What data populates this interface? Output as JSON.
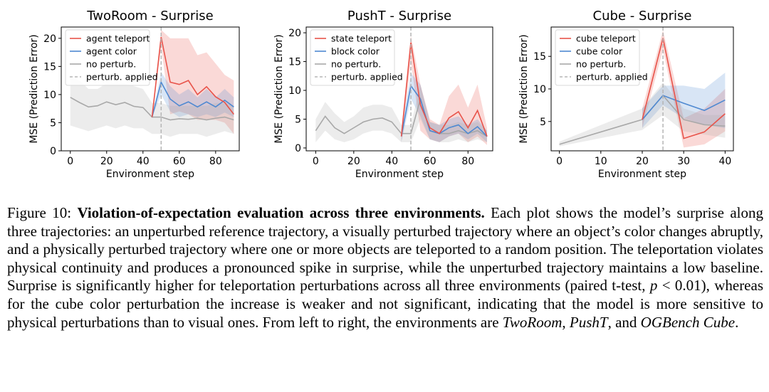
{
  "chart_data": [
    {
      "type": "line",
      "title": "TwoRoom - Surprise",
      "xlabel": "Environment step",
      "ylabel": "MSE (Prediction Error)",
      "xlim": [
        -5,
        93
      ],
      "ylim": [
        0,
        22
      ],
      "xticks": [
        0,
        20,
        40,
        60,
        80
      ],
      "yticks": [
        0,
        5,
        10,
        15,
        20
      ],
      "perturbation_x": 50,
      "legend_position": "top-left",
      "series": [
        {
          "name": "agent teleport",
          "color": "#e8534a",
          "x": [
            45,
            50,
            55,
            60,
            65,
            70,
            75,
            80,
            85,
            90
          ],
          "y": [
            6,
            20.2,
            12.2,
            11.8,
            12.5,
            10,
            11.4,
            9.6,
            8.6,
            6.5
          ],
          "lower": [
            6,
            18.5,
            6.5,
            7,
            6.5,
            5.5,
            5.5,
            5.5,
            5,
            3
          ],
          "upper": [
            6,
            21.5,
            20,
            20,
            20,
            17,
            17.5,
            15.5,
            13.5,
            12.5
          ]
        },
        {
          "name": "agent color",
          "color": "#4f89d1",
          "x": [
            45,
            50,
            55,
            60,
            65,
            70,
            75,
            80,
            85,
            90
          ],
          "y": [
            6,
            12.2,
            9.2,
            8,
            8.7,
            7.8,
            8.7,
            7.8,
            9,
            7.8
          ],
          "lower": [
            6,
            10,
            7,
            6,
            6.5,
            6,
            6.5,
            6,
            6.8,
            6
          ],
          "upper": [
            6,
            14,
            11.5,
            10,
            11,
            9.5,
            11,
            9.5,
            11,
            9.5
          ]
        },
        {
          "name": "no perturb.",
          "color": "#a8a8a8",
          "x": [
            0,
            5,
            10,
            15,
            20,
            25,
            30,
            35,
            40,
            45,
            50,
            55,
            60,
            65,
            70,
            75,
            80,
            85,
            90
          ],
          "y": [
            9.5,
            8.6,
            7.8,
            8,
            8.7,
            8.2,
            8.6,
            7.9,
            7.7,
            6,
            6,
            5.5,
            5.7,
            5.6,
            5.8,
            5.5,
            5.8,
            6,
            5.5
          ],
          "lower": [
            4.5,
            4,
            3.5,
            4,
            4.5,
            4,
            4.5,
            4,
            4,
            3,
            3,
            2.5,
            3,
            3,
            3,
            2.5,
            3,
            3.5,
            3
          ],
          "upper": [
            13,
            12.5,
            11,
            11,
            12,
            12,
            12,
            11.5,
            11,
            8.5,
            8.5,
            8,
            8,
            8,
            8,
            8,
            8.5,
            8.5,
            8
          ]
        }
      ],
      "marker_label": "perturb. applied"
    },
    {
      "type": "line",
      "title": "PushT - Surprise",
      "xlabel": "Environment step",
      "ylabel": "MSE (Prediction Error)",
      "xlim": [
        -5,
        93
      ],
      "ylim": [
        -0.5,
        21
      ],
      "xticks": [
        0,
        20,
        40,
        60,
        80
      ],
      "yticks": [
        0,
        5,
        10,
        15,
        20
      ],
      "perturbation_x": 50,
      "legend_position": "top-left",
      "series": [
        {
          "name": "state teleport",
          "color": "#e8534a",
          "x": [
            45,
            50,
            55,
            60,
            65,
            70,
            75,
            80,
            85,
            90
          ],
          "y": [
            2,
            18.3,
            7.5,
            3.5,
            2.5,
            5.2,
            6.3,
            3.5,
            6.5,
            2
          ],
          "lower": [
            1,
            15,
            3,
            1.5,
            1,
            2,
            2.5,
            1,
            2,
            0.5
          ],
          "upper": [
            3,
            19.5,
            11,
            5,
            4,
            9,
            11,
            7,
            11,
            3.5
          ]
        },
        {
          "name": "block color",
          "color": "#4f89d1",
          "x": [
            45,
            50,
            55,
            60,
            65,
            70,
            75,
            80,
            85,
            90
          ],
          "y": [
            2,
            10.8,
            8.5,
            3,
            2.5,
            3.5,
            4,
            2.5,
            3.7,
            2
          ],
          "lower": [
            1,
            8.5,
            5.5,
            1.5,
            1,
            2,
            2.5,
            1.5,
            2.5,
            1
          ],
          "upper": [
            3,
            13,
            11,
            4.5,
            4,
            5,
            5.5,
            4,
            5,
            3
          ]
        },
        {
          "name": "no perturb.",
          "color": "#a8a8a8",
          "x": [
            0,
            5,
            10,
            15,
            20,
            25,
            30,
            35,
            40,
            45,
            50,
            55,
            60,
            65,
            70,
            75,
            80,
            85,
            90
          ],
          "y": [
            3,
            5.5,
            3.5,
            2.5,
            3.5,
            4.5,
            5,
            5.2,
            4.5,
            2.5,
            2.5,
            8.5,
            3,
            2.5,
            2.5,
            3,
            2.5,
            3,
            2
          ],
          "lower": [
            1,
            3,
            1.5,
            1,
            1.5,
            2.5,
            3,
            3,
            2.5,
            1,
            1,
            5,
            1.5,
            1,
            1,
            1.5,
            1,
            1.5,
            1
          ],
          "upper": [
            5,
            8,
            6,
            4.5,
            5.5,
            7,
            7.5,
            7.5,
            7,
            4,
            4,
            11,
            4.5,
            4,
            4,
            4.5,
            4,
            4.5,
            3
          ]
        }
      ],
      "marker_label": "perturb. applied"
    },
    {
      "type": "line",
      "title": "Cube - Surprise",
      "xlabel": "Environment step",
      "ylabel": "MSE (Prediction Error)",
      "xlim": [
        -2,
        42
      ],
      "ylim": [
        0.5,
        19.5
      ],
      "xticks": [
        0,
        10,
        20,
        30,
        40
      ],
      "yticks": [
        5,
        10,
        15
      ],
      "perturbation_x": 25,
      "legend_position": "top-left",
      "series": [
        {
          "name": "cube teleport",
          "color": "#e8534a",
          "x": [
            20,
            25,
            30,
            35,
            40
          ],
          "y": [
            5.3,
            17.8,
            2.4,
            3.4,
            6.2
          ],
          "lower": [
            4,
            16,
            1,
            1.5,
            3.5
          ],
          "upper": [
            7,
            19,
            5.5,
            7,
            10
          ]
        },
        {
          "name": "cube color",
          "color": "#4f89d1",
          "x": [
            20,
            25,
            30,
            35,
            40
          ],
          "y": [
            5.3,
            9,
            7.8,
            6.7,
            8.3
          ],
          "lower": [
            4,
            7.5,
            5.5,
            4.5,
            4
          ],
          "upper": [
            7,
            10.5,
            10.5,
            10,
            12.5
          ]
        },
        {
          "name": "no perturb.",
          "color": "#a8a8a8",
          "x": [
            0,
            20,
            25,
            30,
            35,
            40
          ],
          "y": [
            1.5,
            5.3,
            9,
            5.3,
            4.5,
            4.3
          ],
          "lower": [
            1.2,
            3.7,
            6,
            3.5,
            3,
            2.5
          ],
          "upper": [
            1.9,
            7,
            11,
            7,
            6,
            6
          ]
        }
      ],
      "marker_label": "perturb. applied"
    }
  ],
  "caption": {
    "prefix": "Figure 10: ",
    "bold": "Violation-of-expectation evaluation across three environments.",
    "body1": " Each plot shows the model’s surprise along three trajectories: an unperturbed reference trajectory, a visually perturbed trajectory where an object’s color changes abruptly, and a physically perturbed trajectory where one or more objects are teleported to a random position. The teleportation violates physical continuity and produces a pronounced spike in surprise, while the unperturbed trajectory maintains a low baseline. Surprise is significantly higher for teleportation perturbations across all three environments (paired t-test, ",
    "math_p": "p",
    "math_rest": " < 0.01",
    "body2": "), whereas for the cube color perturbation the increase is weaker and not significant, indicating that the model is more sensitive to physical perturbations than to visual ones. From left to right, the environments are ",
    "env1": "TwoRoom",
    "sep1": ", ",
    "env2": "PushT",
    "sep2": ", and ",
    "env3": "OGBench Cube",
    "end": "."
  }
}
